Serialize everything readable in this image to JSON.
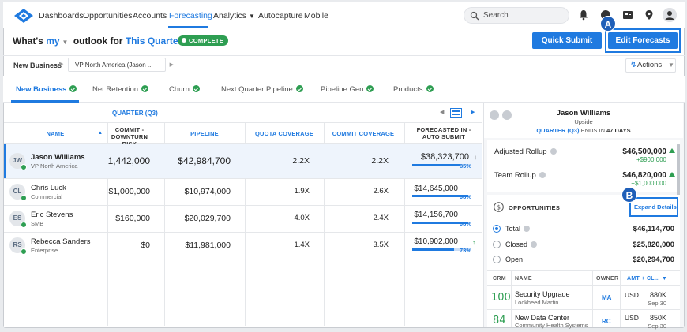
{
  "nav": {
    "items": [
      "Dashboards",
      "Opportunities",
      "Accounts",
      "Forecasting",
      "Analytics",
      "Autocapture",
      "Mobile"
    ],
    "active": "Forecasting",
    "search_placeholder": "Search",
    "icons": [
      "bell-icon",
      "help-icon",
      "news-icon",
      "location-icon",
      "user-avatar-icon"
    ]
  },
  "header": {
    "prefix": "What's",
    "who": "my",
    "middle": "outlook for",
    "period": "This Quarter",
    "help": "?",
    "status": "COMPLETE",
    "quick_submit": "Quick Submit",
    "edit_forecasts": "Edit Forecasts",
    "marker_a": "A",
    "marker_b": "B"
  },
  "filter": {
    "label": "New Business",
    "value": "VP North America (Jason ...",
    "actions": "Actions"
  },
  "tabs": [
    "New Business",
    "Net Retention",
    "Churn",
    "Next Quarter Pipeline",
    "Pipeline Gen",
    "Products"
  ],
  "grid": {
    "period": "QUARTER (Q3)",
    "columns": {
      "name": "NAME",
      "commit": "COMMIT - DOWNTURN RISK",
      "pipeline": "PIPELINE",
      "quota": "QUOTA COVERAGE",
      "commit_cov": "COMMIT COVERAGE",
      "forecast": "FORECASTED IN - AUTO SUBMIT"
    },
    "rows": [
      {
        "initials": "JW",
        "name": "Jason Williams",
        "sub": "VP North America",
        "commit": "1,442,000",
        "pipeline": "$42,984,700",
        "quota": "2.2X",
        "commit_cov": "2.2X",
        "forecast": "$38,323,700",
        "pct": "85%",
        "pct_value": 85
      },
      {
        "initials": "CL",
        "name": "Chris Luck",
        "sub": "Commercial",
        "commit": "$1,000,000",
        "pipeline": "$10,974,000",
        "quota": "1.9X",
        "commit_cov": "2.6X",
        "forecast": "$14,645,000",
        "pct": "98%",
        "pct_value": 98
      },
      {
        "initials": "ES",
        "name": "Eric Stevens",
        "sub": "SMB",
        "commit": "$160,000",
        "pipeline": "$20,029,700",
        "quota": "4.0X",
        "commit_cov": "2.4X",
        "forecast": "$14,156,700",
        "pct": "98%",
        "pct_value": 98
      },
      {
        "initials": "RS",
        "name": "Rebecca Sanders",
        "sub": "Enterprise",
        "commit": "$0",
        "pipeline": "$11,981,000",
        "quota": "1.4X",
        "commit_cov": "3.5X",
        "forecast": "$10,902,000",
        "pct": "73%",
        "pct_value": 73
      }
    ]
  },
  "panel": {
    "name": "Jason Williams",
    "sub": "Upside",
    "quarter": "QUARTER (Q3)",
    "ends_in": "ENDS IN",
    "days": "47 DAYS",
    "adjusted_label": "Adjusted Rollup",
    "adjusted_val": "$46,500,000",
    "adjusted_delta": "+$900,000",
    "team_label": "Team Rollup",
    "team_val": "$46,820,000",
    "team_delta": "+$1,000,000",
    "opp_title": "OPPORTUNITIES",
    "expand": "Expand Details",
    "total_label": "Total",
    "total_val": "$46,114,700",
    "closed_label": "Closed",
    "closed_val": "$25,820,000",
    "open_label": "Open",
    "open_val": "$20,294,700",
    "table_headers": {
      "crm": "CRM",
      "name": "NAME",
      "owner": "OWNER",
      "amt": "AMT + CL..."
    },
    "deals": [
      {
        "crm": "100",
        "name": "Security Upgrade",
        "company": "Lockheed Martin",
        "owner": "MA",
        "cur": "USD",
        "amt": "880K",
        "close": "Sep 30"
      },
      {
        "crm": "84",
        "name": "New Data Center",
        "company": "Community Health Systems",
        "owner": "RC",
        "cur": "USD",
        "amt": "850K",
        "close": "Sep 30"
      }
    ]
  },
  "colors": {
    "accent": "#1f7ae0",
    "success": "#2e9e52",
    "marker": "#1f5fb8"
  }
}
